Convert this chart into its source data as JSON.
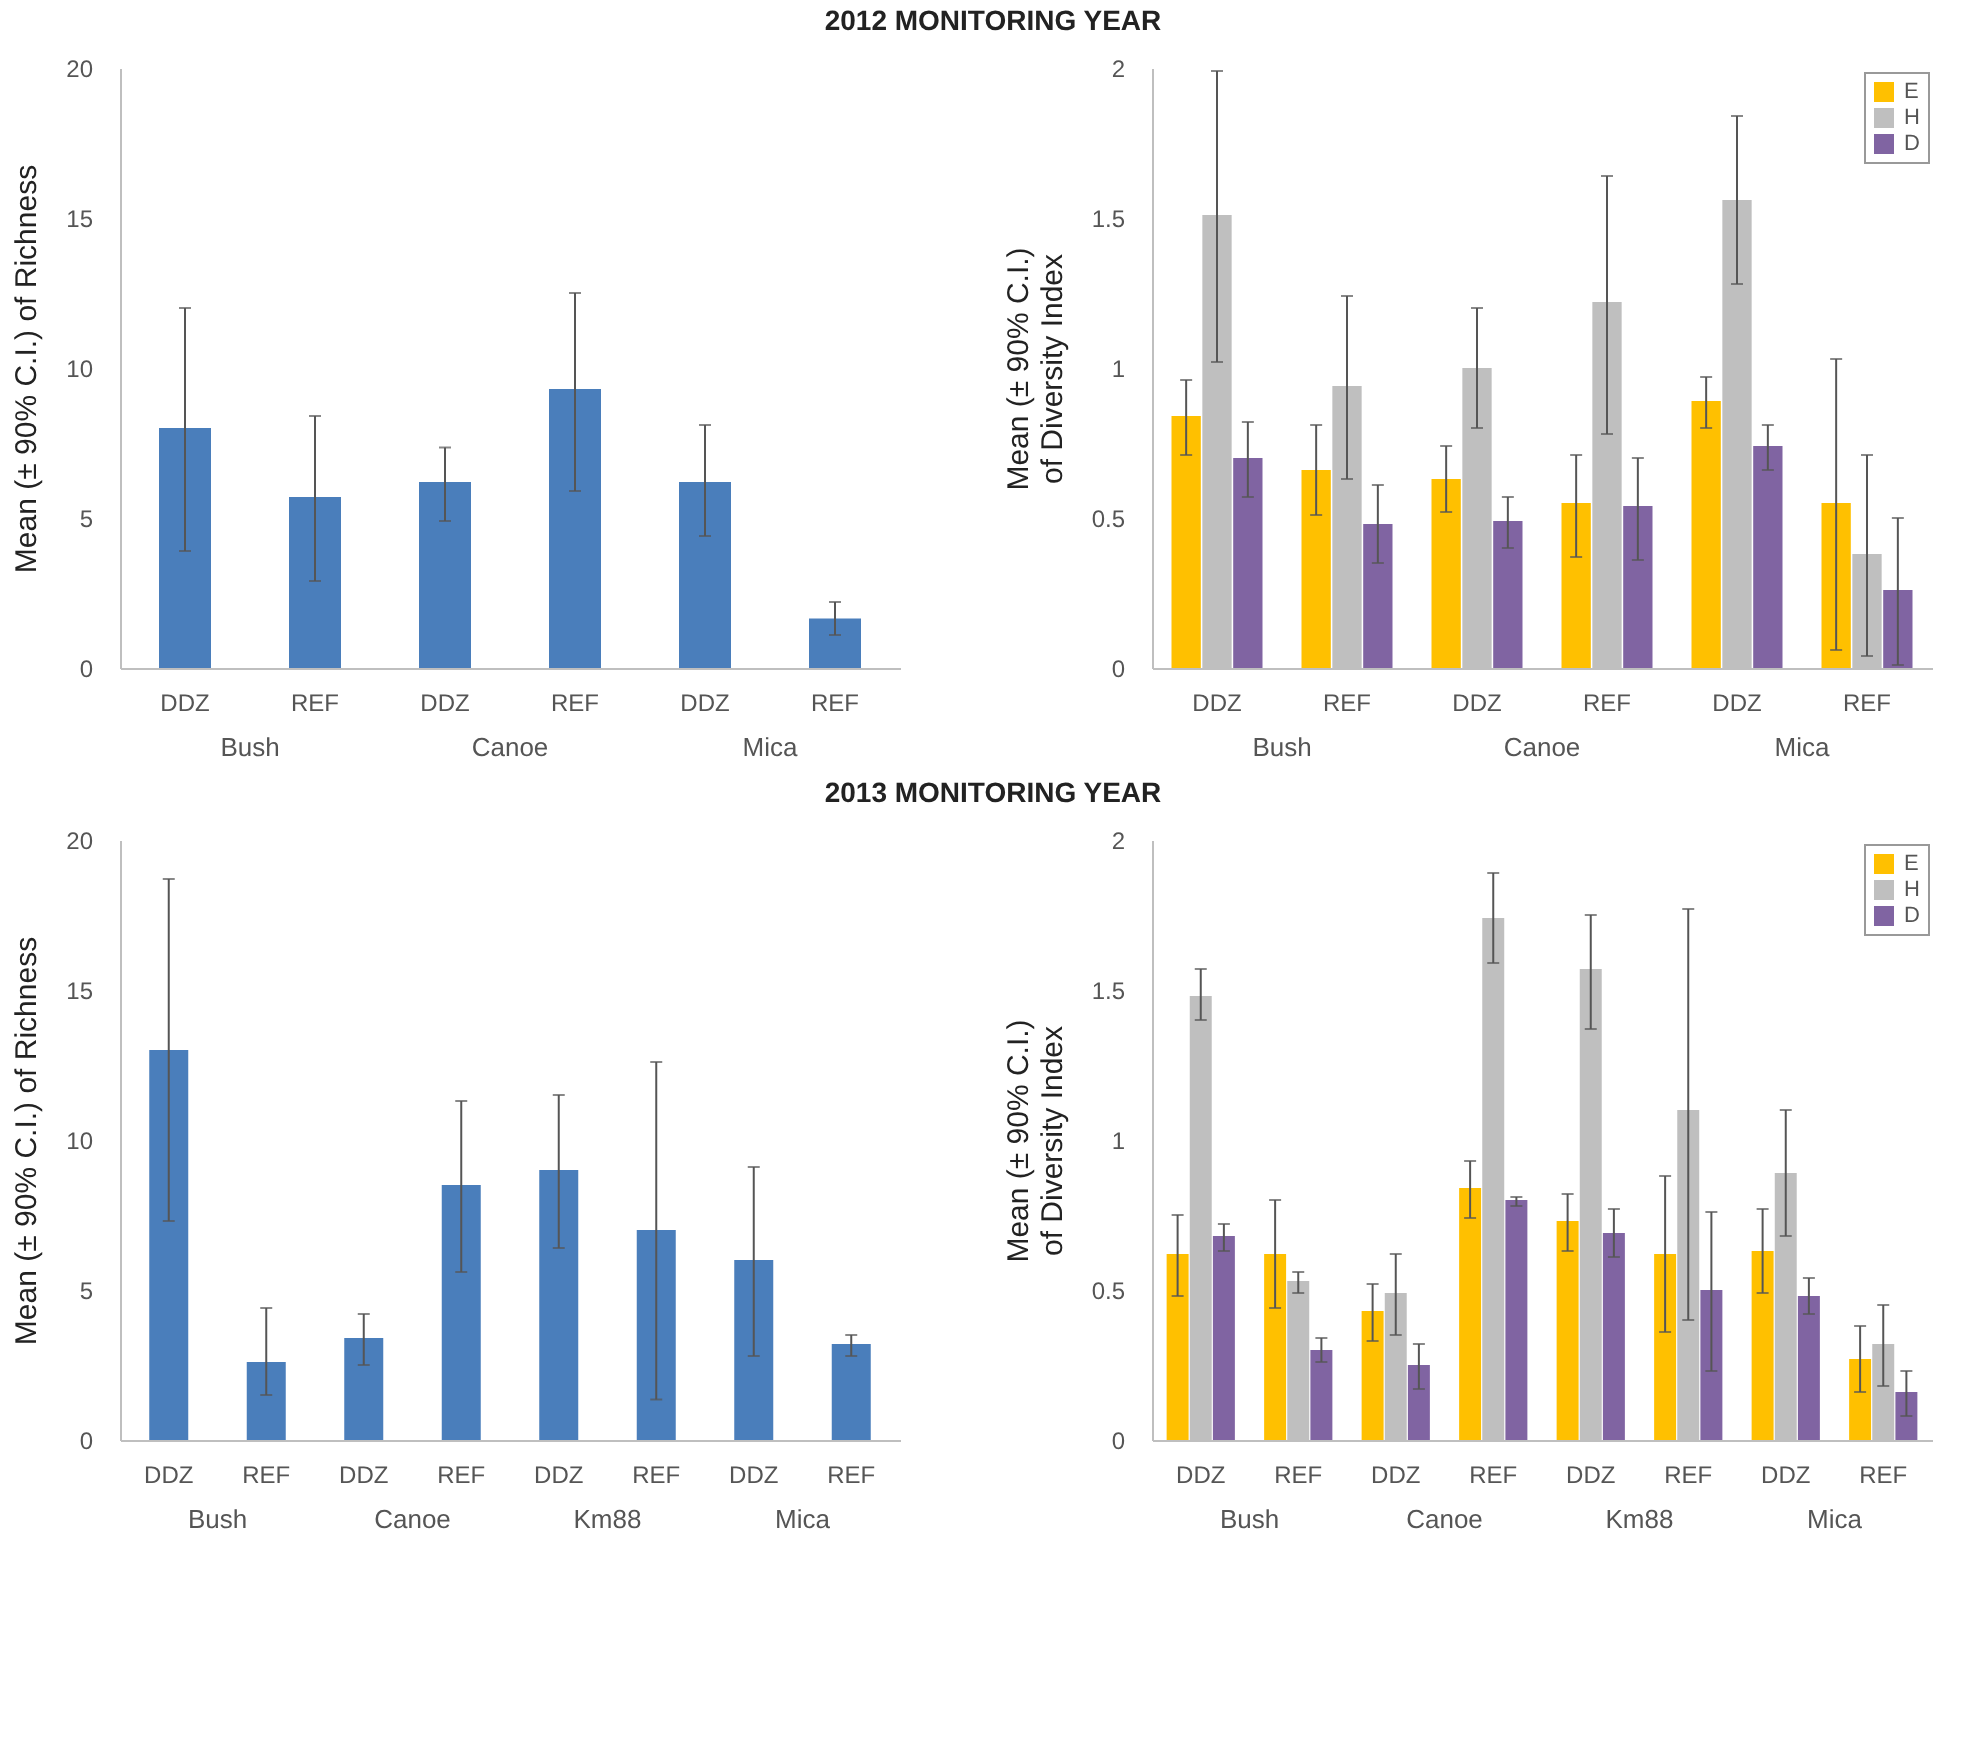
{
  "chart_data": [
    {
      "type": "bar",
      "title": "2012 MONITORING YEAR",
      "ylabel": "Mean (± 90% C.I.) of Richness",
      "categories": [
        "DDZ",
        "REF",
        "DDZ",
        "REF",
        "DDZ",
        "REF"
      ],
      "annotations": [
        "Bush",
        "Canoe",
        "Mica"
      ],
      "ylim": [
        0,
        20
      ],
      "yticks": [
        0,
        5,
        10,
        15,
        20
      ],
      "grid": false,
      "legend": false,
      "series": [
        {
          "color": "#4a7ebb",
          "values": [
            8.0,
            5.7,
            6.2,
            9.3,
            6.2,
            1.65
          ],
          "errors": [
            [
              3.9,
              12.0
            ],
            [
              2.9,
              8.4
            ],
            [
              4.9,
              7.35
            ],
            [
              5.9,
              12.5
            ],
            [
              4.4,
              8.1
            ],
            [
              1.1,
              2.2
            ]
          ]
        }
      ]
    },
    {
      "type": "bar",
      "ylabel": "Mean (± 90% C.I.) of Diversity Index",
      "categories": [
        "DDZ",
        "REF",
        "DDZ",
        "REF",
        "DDZ",
        "REF"
      ],
      "annotations": [
        "Bush",
        "Canoe",
        "Mica"
      ],
      "ylim": [
        0,
        2
      ],
      "yticks": [
        0,
        0.5,
        1,
        1.5,
        2
      ],
      "grid": false,
      "legend": "top right",
      "series": [
        {
          "name": "E",
          "color": "#ffc000",
          "values": [
            0.84,
            0.66,
            0.63,
            0.55,
            0.89,
            0.55
          ],
          "errors": [
            [
              0.71,
              0.96
            ],
            [
              0.51,
              0.81
            ],
            [
              0.52,
              0.74
            ],
            [
              0.37,
              0.71
            ],
            [
              0.8,
              0.97
            ],
            [
              0.06,
              1.03
            ]
          ]
        },
        {
          "name": "H",
          "color": "#bfbfbf",
          "values": [
            1.51,
            0.94,
            1.0,
            1.22,
            1.56,
            0.38
          ],
          "errors": [
            [
              1.02,
              1.99
            ],
            [
              0.63,
              1.24
            ],
            [
              0.8,
              1.2
            ],
            [
              0.78,
              1.64
            ],
            [
              1.28,
              1.84
            ],
            [
              0.04,
              0.71
            ]
          ]
        },
        {
          "name": "D",
          "color": "#8064a2",
          "values": [
            0.7,
            0.48,
            0.49,
            0.54,
            0.74,
            0.26
          ],
          "errors": [
            [
              0.57,
              0.82
            ],
            [
              0.35,
              0.61
            ],
            [
              0.4,
              0.57
            ],
            [
              0.36,
              0.7
            ],
            [
              0.66,
              0.81
            ],
            [
              0.01,
              0.5
            ]
          ]
        }
      ]
    },
    {
      "type": "bar",
      "title": "2013 MONITORING YEAR",
      "ylabel": "Mean (± 90% C.I.) of Richness",
      "categories": [
        "DDZ",
        "REF",
        "DDZ",
        "REF",
        "DDZ",
        "REF",
        "DDZ",
        "REF"
      ],
      "annotations": [
        "Bush",
        "Canoe",
        "Km88",
        "Mica"
      ],
      "ylim": [
        0,
        20
      ],
      "yticks": [
        0,
        5,
        10,
        15,
        20
      ],
      "grid": false,
      "legend": false,
      "series": [
        {
          "color": "#4a7ebb",
          "values": [
            13.0,
            2.6,
            3.4,
            8.5,
            9.0,
            7.0,
            6.0,
            3.2
          ],
          "errors": [
            [
              7.3,
              18.7
            ],
            [
              1.5,
              4.4
            ],
            [
              2.5,
              4.2
            ],
            [
              5.6,
              11.3
            ],
            [
              6.4,
              11.5
            ],
            [
              1.35,
              12.6
            ],
            [
              2.8,
              9.1
            ],
            [
              2.8,
              3.5
            ]
          ]
        }
      ]
    },
    {
      "type": "bar",
      "ylabel": "Mean (± 90% C.I.) of Diversity Index",
      "categories": [
        "DDZ",
        "REF",
        "DDZ",
        "REF",
        "DDZ",
        "REF",
        "DDZ",
        "REF"
      ],
      "annotations": [
        "Bush",
        "Canoe",
        "Km88",
        "Mica"
      ],
      "ylim": [
        0,
        2
      ],
      "yticks": [
        0,
        0.5,
        1,
        1.5,
        2
      ],
      "grid": false,
      "legend": "top right",
      "series": [
        {
          "name": "E",
          "color": "#ffc000",
          "values": [
            0.62,
            0.62,
            0.43,
            0.84,
            0.73,
            0.62,
            0.63,
            0.27
          ],
          "errors": [
            [
              0.48,
              0.75
            ],
            [
              0.44,
              0.8
            ],
            [
              0.33,
              0.52
            ],
            [
              0.74,
              0.93
            ],
            [
              0.63,
              0.82
            ],
            [
              0.36,
              0.88
            ],
            [
              0.49,
              0.77
            ],
            [
              0.16,
              0.38
            ]
          ]
        },
        {
          "name": "H",
          "color": "#bfbfbf",
          "values": [
            1.48,
            0.53,
            0.49,
            1.74,
            1.57,
            1.1,
            0.89,
            0.32
          ],
          "errors": [
            [
              1.4,
              1.57
            ],
            [
              0.49,
              0.56
            ],
            [
              0.35,
              0.62
            ],
            [
              1.59,
              1.89
            ],
            [
              1.37,
              1.75
            ],
            [
              0.4,
              1.77
            ],
            [
              0.68,
              1.1
            ],
            [
              0.18,
              0.45
            ]
          ]
        },
        {
          "name": "D",
          "color": "#8064a2",
          "values": [
            0.68,
            0.3,
            0.25,
            0.8,
            0.69,
            0.5,
            0.48,
            0.16
          ],
          "errors": [
            [
              0.63,
              0.72
            ],
            [
              0.26,
              0.34
            ],
            [
              0.17,
              0.32
            ],
            [
              0.78,
              0.81
            ],
            [
              0.61,
              0.77
            ],
            [
              0.23,
              0.76
            ],
            [
              0.42,
              0.54
            ],
            [
              0.08,
              0.23
            ]
          ]
        }
      ]
    }
  ]
}
